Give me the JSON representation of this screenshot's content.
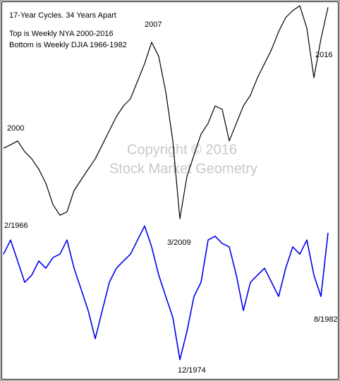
{
  "chart_data": {
    "type": "line",
    "title": "17-Year Cycles. 34 Years Apart",
    "subtitle": [
      "Top is Weekly NYA 2000-2016",
      "Bottom is Weekly DJIA 1966-1982"
    ],
    "watermark": [
      "Copyright © 2016",
      "Stock Market Geometry"
    ],
    "annotations": [
      "2007",
      "2016",
      "2000",
      "2/1966",
      "3/2009",
      "12/1974",
      "8/1982"
    ],
    "ylim": [
      0,
      100
    ],
    "series": [
      {
        "color": "#000000",
        "values": [
          61.1,
          62.0,
          63.0,
          60.2,
          58.3,
          55.6,
          51.9,
          46.3,
          43.5,
          44.4,
          50.0,
          52.8,
          55.6,
          58.3,
          62.0,
          65.7,
          69.4,
          72.2,
          74.1,
          78.7,
          83.3,
          88.9,
          85.2,
          75.9,
          63.0,
          42.6,
          53.7,
          59.3,
          64.8,
          67.6,
          72.2,
          71.3,
          63.0,
          67.6,
          72.2,
          75.0,
          79.6,
          83.3,
          87.0,
          91.7,
          95.4,
          97.2,
          98.5,
          92.6,
          79.6,
          89.8,
          98.1
        ]
      },
      {
        "color": "#0000ee",
        "values": [
          33.3,
          37.0,
          31.5,
          25.9,
          27.8,
          31.5,
          29.6,
          32.4,
          33.3,
          37.0,
          29.6,
          24.1,
          18.5,
          11.1,
          18.5,
          25.9,
          29.6,
          31.5,
          33.3,
          37.0,
          40.7,
          35.2,
          27.8,
          22.2,
          16.7,
          5.6,
          13.0,
          22.2,
          25.9,
          37.0,
          38.0,
          36.1,
          35.2,
          27.8,
          18.5,
          25.9,
          27.8,
          29.6,
          25.9,
          22.2,
          29.6,
          35.2,
          33.3,
          37.0,
          27.8,
          22.2,
          38.9
        ]
      }
    ]
  }
}
